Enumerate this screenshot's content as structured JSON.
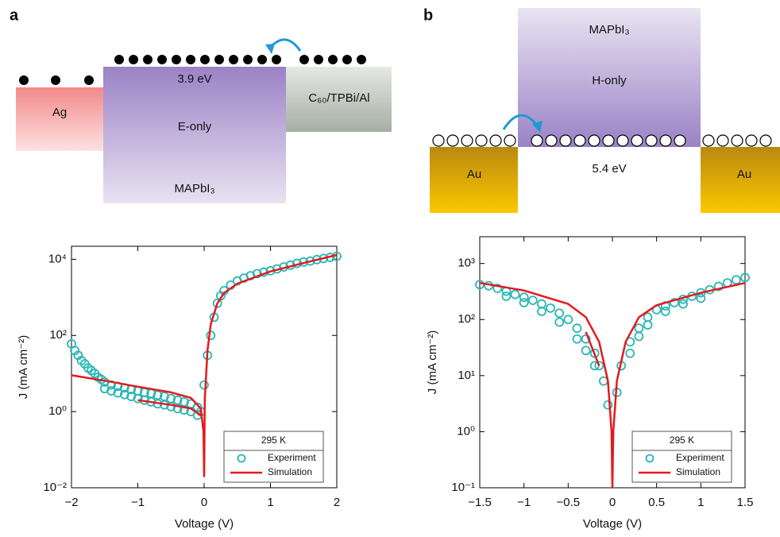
{
  "diagram_a": {
    "label": "a",
    "metal": "Ag",
    "energy": "3.9 eV",
    "device": "E-only",
    "material": "MAPbI₃",
    "contact": "C₆₀/TPBi/Al"
  },
  "diagram_b": {
    "label": "b",
    "material": "MAPbI₃",
    "device": "H-only",
    "energy": "5.4 eV",
    "left_metal": "Au",
    "right_metal": "Au"
  },
  "chart_data": [
    {
      "type": "line",
      "x_label": "Voltage (V)",
      "y_label": "J (mA cm⁻²)",
      "log_y": true,
      "xlim": [
        -2,
        2
      ],
      "ylim": [
        0.01,
        22000
      ],
      "xticks": [
        {
          "value": -2,
          "label": "−2"
        },
        {
          "value": -1,
          "label": "−1"
        },
        0,
        1,
        2
      ],
      "yticks": [
        {
          "value": 0.01,
          "label": "10⁻²"
        },
        {
          "value": 1,
          "label": "10⁰"
        },
        {
          "value": 100,
          "label": "10²"
        },
        {
          "value": 10000,
          "label": "10⁴"
        }
      ],
      "legend": "lower right",
      "legend_title": "295 K",
      "series": [
        {
          "name": "Experiment",
          "type": "scatter",
          "color": "#2bb5b5",
          "x": [
            -2,
            -1.95,
            -1.9,
            -1.85,
            -1.8,
            -1.75,
            -1.7,
            -1.65,
            -1.6,
            -1.55,
            -1.5,
            -1.4,
            -1.3,
            -1.2,
            -1.1,
            -1.0,
            -0.9,
            -0.8,
            -0.7,
            -0.6,
            -0.5,
            -0.4,
            -0.3,
            -0.2,
            -0.1,
            -0.05,
            -1.5,
            -1.4,
            -1.3,
            -1.2,
            -1.1,
            -1.0,
            -0.9,
            -0.8,
            -0.7,
            -0.6,
            -0.5,
            -0.4,
            -0.3,
            -0.2,
            -0.1,
            0.0,
            0.05,
            0.1,
            0.15,
            0.2,
            0.25,
            0.3,
            0.4,
            0.5,
            0.6,
            0.7,
            0.8,
            0.9,
            1.0,
            1.1,
            1.2,
            1.3,
            1.4,
            1.5,
            1.6,
            1.7,
            1.8,
            1.9,
            2.0
          ],
          "values": [
            60,
            40,
            30,
            22,
            18,
            14,
            12,
            10,
            8,
            7,
            6,
            5,
            4.6,
            4.2,
            3.8,
            3.5,
            3.2,
            3,
            2.7,
            2.5,
            2.2,
            2,
            1.8,
            1.6,
            1.3,
            1.0,
            4,
            3.5,
            3.1,
            2.8,
            2.5,
            2.2,
            2,
            1.8,
            1.6,
            1.5,
            1.35,
            1.2,
            1.1,
            1.0,
            0.8,
            5,
            30,
            100,
            300,
            700,
            1100,
            1500,
            2100,
            2700,
            3200,
            3700,
            4200,
            4600,
            5000,
            5600,
            6300,
            7000,
            7800,
            8500,
            9000,
            9800,
            10500,
            11200,
            12000
          ]
        },
        {
          "name": "Simulation",
          "type": "line",
          "color": "#e41a1c",
          "x": [
            -2,
            -1.5,
            -1.0,
            -0.5,
            -0.2,
            -0.05,
            -0.01,
            0,
            0.01,
            0.05,
            0.1,
            0.2,
            0.3,
            0.5,
            1.0,
            1.5,
            2.0,
            -1.5,
            -1.0,
            -0.5,
            -0.2,
            -0.05
          ],
          "values": [
            9,
            6.5,
            4.5,
            3.2,
            2.3,
            1.2,
            0.3,
            0.02,
            2,
            40,
            200,
            700,
            1300,
            2300,
            4800,
            8000,
            13000,
            null,
            2.0,
            1.5,
            1.2,
            0.8
          ]
        }
      ]
    },
    {
      "type": "line",
      "x_label": "Voltage (V)",
      "y_label": "J (mA cm⁻²)",
      "log_y": true,
      "xlim": [
        -1.5,
        1.5
      ],
      "ylim": [
        0.1,
        3000
      ],
      "xticks": [
        {
          "value": -1.5,
          "label": "−1.5"
        },
        {
          "value": -1,
          "label": "−1"
        },
        {
          "value": -0.5,
          "label": "−0.5"
        },
        0,
        0.5,
        1,
        1.5
      ],
      "yticks": [
        {
          "value": 0.1,
          "label": "10⁻¹"
        },
        {
          "value": 1,
          "label": "10⁰"
        },
        {
          "value": 10,
          "label": "10¹"
        },
        {
          "value": 100,
          "label": "10²"
        },
        {
          "value": 1000,
          "label": "10³"
        }
      ],
      "legend": "lower right",
      "legend_title": "295 K",
      "series": [
        {
          "name": "Experiment",
          "type": "scatter",
          "color": "#2bb5b5",
          "x": [
            -1.5,
            -1.4,
            -1.3,
            -1.2,
            -1.1,
            -1.0,
            -0.9,
            -0.8,
            -0.7,
            -0.6,
            -0.5,
            -0.4,
            -0.3,
            -0.2,
            -0.15,
            -0.1,
            -0.05,
            -1.2,
            -1.0,
            -0.8,
            -0.6,
            -0.4,
            -0.3,
            -0.2,
            0.05,
            0.1,
            0.2,
            0.3,
            0.4,
            0.5,
            0.6,
            0.7,
            0.8,
            0.9,
            1.0,
            1.1,
            1.2,
            1.3,
            1.4,
            1.5,
            0.2,
            0.3,
            0.4,
            0.6,
            0.8,
            1.0
          ],
          "values": [
            420,
            400,
            360,
            320,
            280,
            250,
            220,
            190,
            160,
            130,
            100,
            70,
            45,
            25,
            15,
            8,
            3,
            260,
            200,
            140,
            90,
            45,
            28,
            15,
            5,
            15,
            40,
            70,
            110,
            150,
            175,
            200,
            230,
            260,
            300,
            340,
            390,
            450,
            510,
            560,
            25,
            50,
            80,
            140,
            190,
            240
          ]
        },
        {
          "name": "Simulation",
          "type": "line",
          "color": "#e41a1c",
          "x": [
            -1.5,
            -1.0,
            -0.5,
            -0.3,
            -0.15,
            -0.05,
            -0.01,
            0,
            0.01,
            0.05,
            0.15,
            0.3,
            0.5,
            1.0,
            1.5,
            -0.5,
            -0.3,
            -0.15
          ],
          "values": [
            450,
            330,
            190,
            110,
            40,
            8,
            1,
            0.1,
            1,
            8,
            40,
            110,
            180,
            300,
            450,
            null,
            60,
            15
          ]
        }
      ]
    }
  ]
}
